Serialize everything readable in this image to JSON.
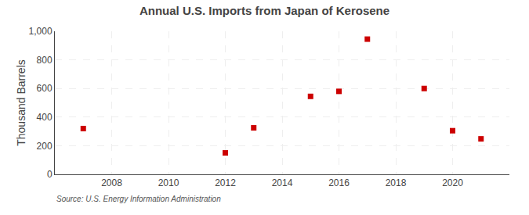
{
  "chart_data": {
    "type": "scatter",
    "title": "Annual U.S. Imports from Japan of Kerosene",
    "ylabel": "Thousand Barrels",
    "annotations": [
      "Source: U.S. Energy Information Administration"
    ],
    "x": [
      2007,
      2012,
      2013,
      2015,
      2016,
      2017,
      2019,
      2020,
      2021
    ],
    "values": [
      320,
      150,
      325,
      545,
      580,
      945,
      600,
      305,
      248
    ],
    "color": "#cc0000",
    "marker": "square",
    "xlim": [
      2006,
      2022
    ],
    "ylim": [
      0,
      1000
    ],
    "xticks": [
      2008,
      2010,
      2012,
      2014,
      2016,
      2018,
      2020
    ],
    "yticks": [
      0,
      200,
      400,
      600,
      800,
      {
        "value": 1000,
        "label": "1,000"
      }
    ],
    "grid": true
  }
}
